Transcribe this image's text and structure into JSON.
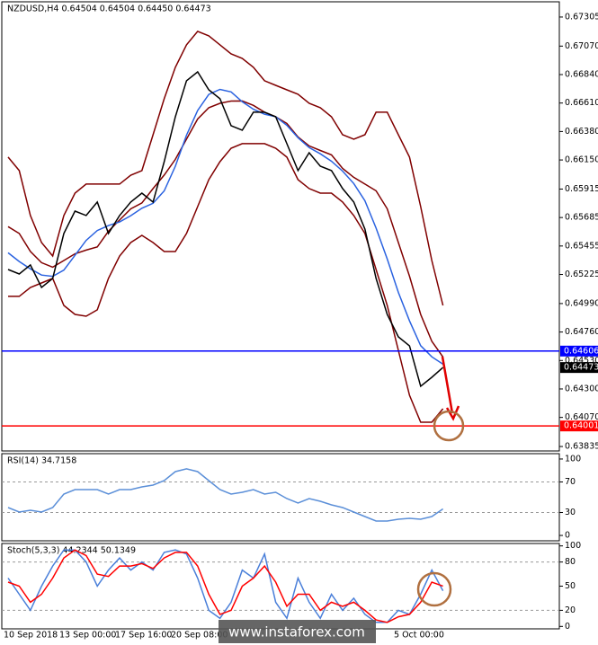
{
  "chart_data": [
    {
      "type": "line",
      "title": "NZDUSD,H4 0.64504 0.64504 0.64450 0.64473",
      "ylim": [
        0.63799,
        0.67428
      ],
      "yticks": [
        0.67305,
        {
          "value": 0.6707,
          "label": "0.67070"
        },
        {
          "value": 0.6684,
          "label": "0.66840"
        },
        {
          "value": 0.6661,
          "label": "0.66610"
        },
        {
          "value": 0.6638,
          "label": "0.66380"
        },
        {
          "value": 0.6615,
          "label": "0.66150"
        },
        0.65915,
        0.65685,
        0.65455,
        0.65225,
        {
          "value": 0.6499,
          "label": "0.64990"
        },
        {
          "value": 0.6476,
          "label": "0.64760"
        },
        {
          "value": 0.6453,
          "label": "0.64530"
        },
        {
          "value": 0.643,
          "label": "0.64300"
        },
        {
          "value": 0.6407,
          "label": "0.64070"
        },
        0.63835
      ],
      "series": [
        {
          "color": "#800000",
          "values": [
            0.66173,
            0.66064,
            0.65701,
            0.65483,
            0.65374,
            0.65701,
            0.65882,
            0.65955,
            0.65955,
            0.65955,
            0.65955,
            0.66027,
            0.66064,
            0.66354,
            0.66645,
            0.66899,
            0.6708,
            0.67189,
            0.67153,
            0.6708,
            0.67007,
            0.66971,
            0.66899,
            0.6679,
            0.66753,
            0.66717,
            0.66681,
            0.66608,
            0.66572,
            0.66499,
            0.66354,
            0.66318,
            0.66354,
            0.66536,
            0.66536,
            0.66354,
            0.66173,
            0.65773,
            0.65338,
            0.64975
          ]
        },
        {
          "color": "#800000",
          "values": [
            0.65611,
            0.65556,
            0.65411,
            0.6532,
            0.65284,
            0.65338,
            0.65392,
            0.65422,
            0.65447,
            0.65574,
            0.65665,
            0.65755,
            0.65803,
            0.65919,
            0.66028,
            0.66155,
            0.66318,
            0.66481,
            0.66572,
            0.66608,
            0.66626,
            0.66627,
            0.66591,
            0.66536,
            0.66499,
            0.66445,
            0.66336,
            0.66264,
            0.66227,
            0.66191,
            0.66082,
            0.6601,
            0.65955,
            0.65901,
            0.65756,
            0.65483,
            0.65211,
            0.64902,
            0.64685,
            0.64558
          ]
        },
        {
          "color": "#800000",
          "values": [
            0.65048,
            0.65048,
            0.6512,
            0.65156,
            0.65193,
            0.64975,
            0.64902,
            0.64888,
            0.64939,
            0.65193,
            0.65374,
            0.65483,
            0.65541,
            0.65483,
            0.6541,
            0.6541,
            0.65556,
            0.65773,
            0.65991,
            0.66136,
            0.66245,
            0.66282,
            0.66282,
            0.66282,
            0.66245,
            0.66173,
            0.65991,
            0.65919,
            0.65882,
            0.65882,
            0.6581,
            0.65701,
            0.65556,
            0.65265,
            0.64975,
            0.64612,
            0.64249,
            0.64031,
            0.64031,
            0.6414
          ]
        },
        {
          "color": "#2a62e0",
          "values": [
            0.654,
            0.6533,
            0.6527,
            0.6522,
            0.6521,
            0.6526,
            0.6538,
            0.655,
            0.6558,
            0.6562,
            0.6565,
            0.657,
            0.6576,
            0.658,
            0.659,
            0.661,
            0.6635,
            0.6655,
            0.6668,
            0.6672,
            0.667,
            0.6662,
            0.6656,
            0.6652,
            0.665,
            0.6643,
            0.6633,
            0.6625,
            0.662,
            0.6614,
            0.6606,
            0.6596,
            0.6582,
            0.656,
            0.6535,
            0.6508,
            0.6485,
            0.6465,
            0.6456,
            0.645
          ]
        },
        {
          "color": "#000000",
          "values": [
            0.65265,
            0.65229,
            0.65302,
            0.6512,
            0.65193,
            0.65556,
            0.65737,
            0.65701,
            0.6581,
            0.65556,
            0.65701,
            0.6581,
            0.65882,
            0.6581,
            0.66136,
            0.66499,
            0.6679,
            0.66862,
            0.66717,
            0.66645,
            0.66427,
            0.6639,
            0.66536,
            0.66536,
            0.66499,
            0.66282,
            0.66064,
            0.66209,
            0.661,
            0.66064,
            0.65919,
            0.6581,
            0.65592,
            0.65193,
            0.64902,
            0.64721,
            0.64648,
            0.64322,
            0.64394,
            0.64473
          ]
        }
      ],
      "hlines": [
        {
          "value": 0.64606,
          "color": "#0000ff"
        },
        {
          "value": 0.64001,
          "color": "#ff0000"
        }
      ],
      "current_price": 0.64473
    },
    {
      "type": "line",
      "title": "RSI(14) 34.7158",
      "ylim": [
        -7,
        107
      ],
      "yticks": [
        100,
        70,
        30,
        0
      ],
      "levels": [
        70,
        30
      ],
      "series": [
        {
          "color": "#5b8fd8",
          "values": [
            36.5,
            30.6,
            32.9,
            30.6,
            36.5,
            54.1,
            60,
            60,
            60,
            54.1,
            60,
            60,
            63.5,
            65.9,
            71.8,
            83.5,
            87.1,
            83.5,
            71.8,
            60,
            54.1,
            56.5,
            60,
            54.1,
            56.5,
            48.2,
            42.4,
            48.2,
            44.7,
            40,
            36.5,
            30.6,
            24.7,
            18.8,
            18.8,
            21.2,
            22.4,
            21.2,
            24.7,
            34.7
          ]
        }
      ]
    },
    {
      "type": "line",
      "title": "Stoch(5,3,3) 44.2344 50.1349",
      "ylim": [
        -3,
        103
      ],
      "yticks": [
        100,
        80,
        50,
        20,
        0
      ],
      "levels": [
        80,
        20
      ],
      "categories": [
        "10 Sep 2018",
        null,
        null,
        null,
        null,
        "13 Sep 00:00",
        null,
        null,
        null,
        null,
        "17 Sep 16:00",
        null,
        null,
        null,
        null,
        "20 Sep 08:00",
        null,
        null,
        null,
        null,
        null,
        null,
        null,
        null,
        null,
        null,
        null,
        null,
        null,
        null,
        null,
        null,
        null,
        null,
        null,
        "5 Oct 00:00",
        null,
        null,
        null,
        null
      ],
      "series": [
        {
          "color": "#4a7fd9",
          "values": [
            60,
            40,
            20,
            50,
            75,
            95,
            95,
            80,
            50,
            70,
            85,
            70,
            80,
            70,
            92,
            95,
            90,
            60,
            20,
            10,
            30,
            70,
            60,
            90,
            30,
            10,
            60,
            30,
            10,
            40,
            20,
            35,
            15,
            5,
            5,
            20,
            15,
            40,
            70,
            44.2
          ]
        },
        {
          "color": "#ff0000",
          "values": [
            55,
            50,
            30,
            40,
            60,
            85,
            95,
            88,
            65,
            62,
            75,
            75,
            78,
            72,
            85,
            92,
            92,
            75,
            40,
            15,
            20,
            50,
            60,
            75,
            55,
            25,
            40,
            40,
            20,
            30,
            25,
            30,
            20,
            8,
            5,
            12,
            15,
            30,
            55,
            50.1
          ]
        }
      ]
    }
  ],
  "watermark": "www.instaforex.com"
}
